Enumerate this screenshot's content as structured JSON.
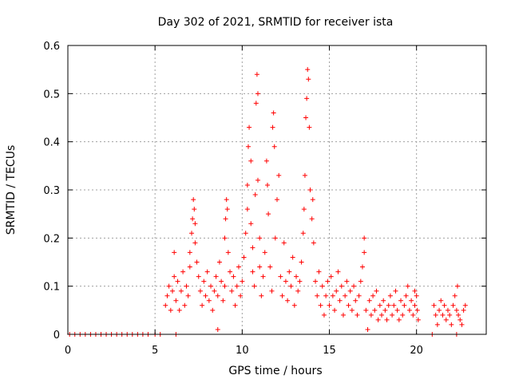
{
  "chart_data": {
    "type": "scatter",
    "title": "Day 302 of 2021, SRMTID for receiver ista",
    "xlabel": "GPS time / hours",
    "ylabel": "SRMTID / TECUs",
    "xlim": [
      0,
      24
    ],
    "ylim": [
      0,
      0.6
    ],
    "xticks": [
      0,
      5,
      10,
      15,
      20
    ],
    "xtick_labels": [
      "0",
      "5",
      "10",
      "15",
      "20"
    ],
    "yticks": [
      0,
      0.1,
      0.2,
      0.3,
      0.4,
      0.5,
      0.6
    ],
    "ytick_labels": [
      "0",
      "0.1",
      "0.2",
      "0.3",
      "0.4",
      "0.5",
      "0.6"
    ],
    "grid": true,
    "marker": "+",
    "series": [
      {
        "name": "SRMTID",
        "color": "#ff0000",
        "points": [
          [
            0.1,
            0
          ],
          [
            0.4,
            0
          ],
          [
            0.7,
            0
          ],
          [
            1.0,
            0
          ],
          [
            1.3,
            0
          ],
          [
            1.6,
            0
          ],
          [
            1.9,
            0
          ],
          [
            2.2,
            0
          ],
          [
            2.5,
            0
          ],
          [
            2.8,
            0
          ],
          [
            3.1,
            0
          ],
          [
            3.4,
            0
          ],
          [
            3.7,
            0
          ],
          [
            4.0,
            0
          ],
          [
            4.3,
            0
          ],
          [
            4.6,
            0
          ],
          [
            5.0,
            0
          ],
          [
            5.3,
            0
          ],
          [
            6.2,
            0
          ],
          [
            5.6,
            0.06
          ],
          [
            5.7,
            0.08
          ],
          [
            5.8,
            0.1
          ],
          [
            5.9,
            0.05
          ],
          [
            6.0,
            0.09
          ],
          [
            6.1,
            0.12
          ],
          [
            6.1,
            0.17
          ],
          [
            6.2,
            0.07
          ],
          [
            6.3,
            0.11
          ],
          [
            6.4,
            0.05
          ],
          [
            6.5,
            0.09
          ],
          [
            6.6,
            0.13
          ],
          [
            6.7,
            0.06
          ],
          [
            6.8,
            0.1
          ],
          [
            6.9,
            0.08
          ],
          [
            7.0,
            0.14
          ],
          [
            7.0,
            0.17
          ],
          [
            7.1,
            0.21
          ],
          [
            7.15,
            0.24
          ],
          [
            7.2,
            0.28
          ],
          [
            7.25,
            0.26
          ],
          [
            7.3,
            0.23
          ],
          [
            7.3,
            0.19
          ],
          [
            7.4,
            0.15
          ],
          [
            7.5,
            0.12
          ],
          [
            7.6,
            0.09
          ],
          [
            7.7,
            0.06
          ],
          [
            7.8,
            0.11
          ],
          [
            7.9,
            0.08
          ],
          [
            8.0,
            0.13
          ],
          [
            8.1,
            0.07
          ],
          [
            8.2,
            0.1
          ],
          [
            8.3,
            0.05
          ],
          [
            8.4,
            0.09
          ],
          [
            8.5,
            0.12
          ],
          [
            8.6,
            0.08
          ],
          [
            8.6,
            0.01
          ],
          [
            8.7,
            0.15
          ],
          [
            8.8,
            0.11
          ],
          [
            8.9,
            0.07
          ],
          [
            9.0,
            0.1
          ],
          [
            9.0,
            0.2
          ],
          [
            9.05,
            0.24
          ],
          [
            9.1,
            0.28
          ],
          [
            9.15,
            0.26
          ],
          [
            9.2,
            0.17
          ],
          [
            9.3,
            0.13
          ],
          [
            9.4,
            0.09
          ],
          [
            9.5,
            0.12
          ],
          [
            9.6,
            0.06
          ],
          [
            9.7,
            0.1
          ],
          [
            9.8,
            0.14
          ],
          [
            9.9,
            0.08
          ],
          [
            10.0,
            0.11
          ],
          [
            10.1,
            0.16
          ],
          [
            10.2,
            0.21
          ],
          [
            10.3,
            0.26
          ],
          [
            10.3,
            0.31
          ],
          [
            10.35,
            0.39
          ],
          [
            10.4,
            0.43
          ],
          [
            10.5,
            0.36
          ],
          [
            10.5,
            0.23
          ],
          [
            10.6,
            0.18
          ],
          [
            10.6,
            0.13
          ],
          [
            10.7,
            0.1
          ],
          [
            10.75,
            0.29
          ],
          [
            10.8,
            0.48
          ],
          [
            10.85,
            0.54
          ],
          [
            10.9,
            0.5
          ],
          [
            10.9,
            0.32
          ],
          [
            11.0,
            0.2
          ],
          [
            11.0,
            0.14
          ],
          [
            11.1,
            0.08
          ],
          [
            11.2,
            0.12
          ],
          [
            11.3,
            0.17
          ],
          [
            11.4,
            0.36
          ],
          [
            11.45,
            0.31
          ],
          [
            11.5,
            0.25
          ],
          [
            11.6,
            0.14
          ],
          [
            11.7,
            0.09
          ],
          [
            11.75,
            0.43
          ],
          [
            11.8,
            0.46
          ],
          [
            11.85,
            0.39
          ],
          [
            11.9,
            0.2
          ],
          [
            12.0,
            0.28
          ],
          [
            12.1,
            0.33
          ],
          [
            12.2,
            0.12
          ],
          [
            12.3,
            0.08
          ],
          [
            12.4,
            0.19
          ],
          [
            12.5,
            0.11
          ],
          [
            12.6,
            0.07
          ],
          [
            12.7,
            0.13
          ],
          [
            12.8,
            0.1
          ],
          [
            12.9,
            0.16
          ],
          [
            13.0,
            0.06
          ],
          [
            13.1,
            0.12
          ],
          [
            13.2,
            0.09
          ],
          [
            13.3,
            0.11
          ],
          [
            13.4,
            0.15
          ],
          [
            13.5,
            0.21
          ],
          [
            13.55,
            0.26
          ],
          [
            13.6,
            0.33
          ],
          [
            13.65,
            0.45
          ],
          [
            13.7,
            0.49
          ],
          [
            13.75,
            0.55
          ],
          [
            13.8,
            0.53
          ],
          [
            13.85,
            0.43
          ],
          [
            13.9,
            0.3
          ],
          [
            14.0,
            0.24
          ],
          [
            14.05,
            0.28
          ],
          [
            14.1,
            0.19
          ],
          [
            14.2,
            0.11
          ],
          [
            14.3,
            0.08
          ],
          [
            14.4,
            0.13
          ],
          [
            14.5,
            0.06
          ],
          [
            14.6,
            0.1
          ],
          [
            14.7,
            0.04
          ],
          [
            14.8,
            0.08
          ],
          [
            14.9,
            0.11
          ],
          [
            15.0,
            0.06
          ],
          [
            15.1,
            0.12
          ],
          [
            15.2,
            0.08
          ],
          [
            15.3,
            0.05
          ],
          [
            15.4,
            0.09
          ],
          [
            15.5,
            0.13
          ],
          [
            15.6,
            0.07
          ],
          [
            15.7,
            0.1
          ],
          [
            15.8,
            0.04
          ],
          [
            15.9,
            0.08
          ],
          [
            16.0,
            0.11
          ],
          [
            16.1,
            0.06
          ],
          [
            16.2,
            0.09
          ],
          [
            16.3,
            0.05
          ],
          [
            16.4,
            0.1
          ],
          [
            16.5,
            0.07
          ],
          [
            16.6,
            0.04
          ],
          [
            16.7,
            0.08
          ],
          [
            16.8,
            0.11
          ],
          [
            16.9,
            0.14
          ],
          [
            17.0,
            0.2
          ],
          [
            17.0,
            0.17
          ],
          [
            17.1,
            0.05
          ],
          [
            17.2,
            0.01
          ],
          [
            17.3,
            0.07
          ],
          [
            17.4,
            0.04
          ],
          [
            17.5,
            0.08
          ],
          [
            17.6,
            0.05
          ],
          [
            17.7,
            0.09
          ],
          [
            17.8,
            0.03
          ],
          [
            17.9,
            0.06
          ],
          [
            18.0,
            0.04
          ],
          [
            18.1,
            0.07
          ],
          [
            18.2,
            0.05
          ],
          [
            18.3,
            0.03
          ],
          [
            18.4,
            0.06
          ],
          [
            18.5,
            0.08
          ],
          [
            18.6,
            0.04
          ],
          [
            18.7,
            0.06
          ],
          [
            18.8,
            0.09
          ],
          [
            18.9,
            0.05
          ],
          [
            19.0,
            0.03
          ],
          [
            19.1,
            0.07
          ],
          [
            19.2,
            0.04
          ],
          [
            19.3,
            0.06
          ],
          [
            19.4,
            0.08
          ],
          [
            19.5,
            0.1
          ],
          [
            19.6,
            0.05
          ],
          [
            19.7,
            0.07
          ],
          [
            19.8,
            0.04
          ],
          [
            19.9,
            0.09
          ],
          [
            19.9,
            0.06
          ],
          [
            20.0,
            0.08
          ],
          [
            20.05,
            0.05
          ],
          [
            20.1,
            0.03
          ],
          [
            20.9,
            0.0
          ],
          [
            21.0,
            0.06
          ],
          [
            21.1,
            0.04
          ],
          [
            21.2,
            0.02
          ],
          [
            21.3,
            0.05
          ],
          [
            21.4,
            0.07
          ],
          [
            21.5,
            0.04
          ],
          [
            21.6,
            0.06
          ],
          [
            21.7,
            0.03
          ],
          [
            21.8,
            0.05
          ],
          [
            21.9,
            0.04
          ],
          [
            22.0,
            0.02
          ],
          [
            22.1,
            0.06
          ],
          [
            22.2,
            0.08
          ],
          [
            22.3,
            0.05
          ],
          [
            22.35,
            0.1
          ],
          [
            22.4,
            0.04
          ],
          [
            22.5,
            0.03
          ],
          [
            22.6,
            0.02
          ],
          [
            22.7,
            0.05
          ],
          [
            22.8,
            0.06
          ],
          [
            22.3,
            0.0
          ]
        ]
      }
    ]
  }
}
